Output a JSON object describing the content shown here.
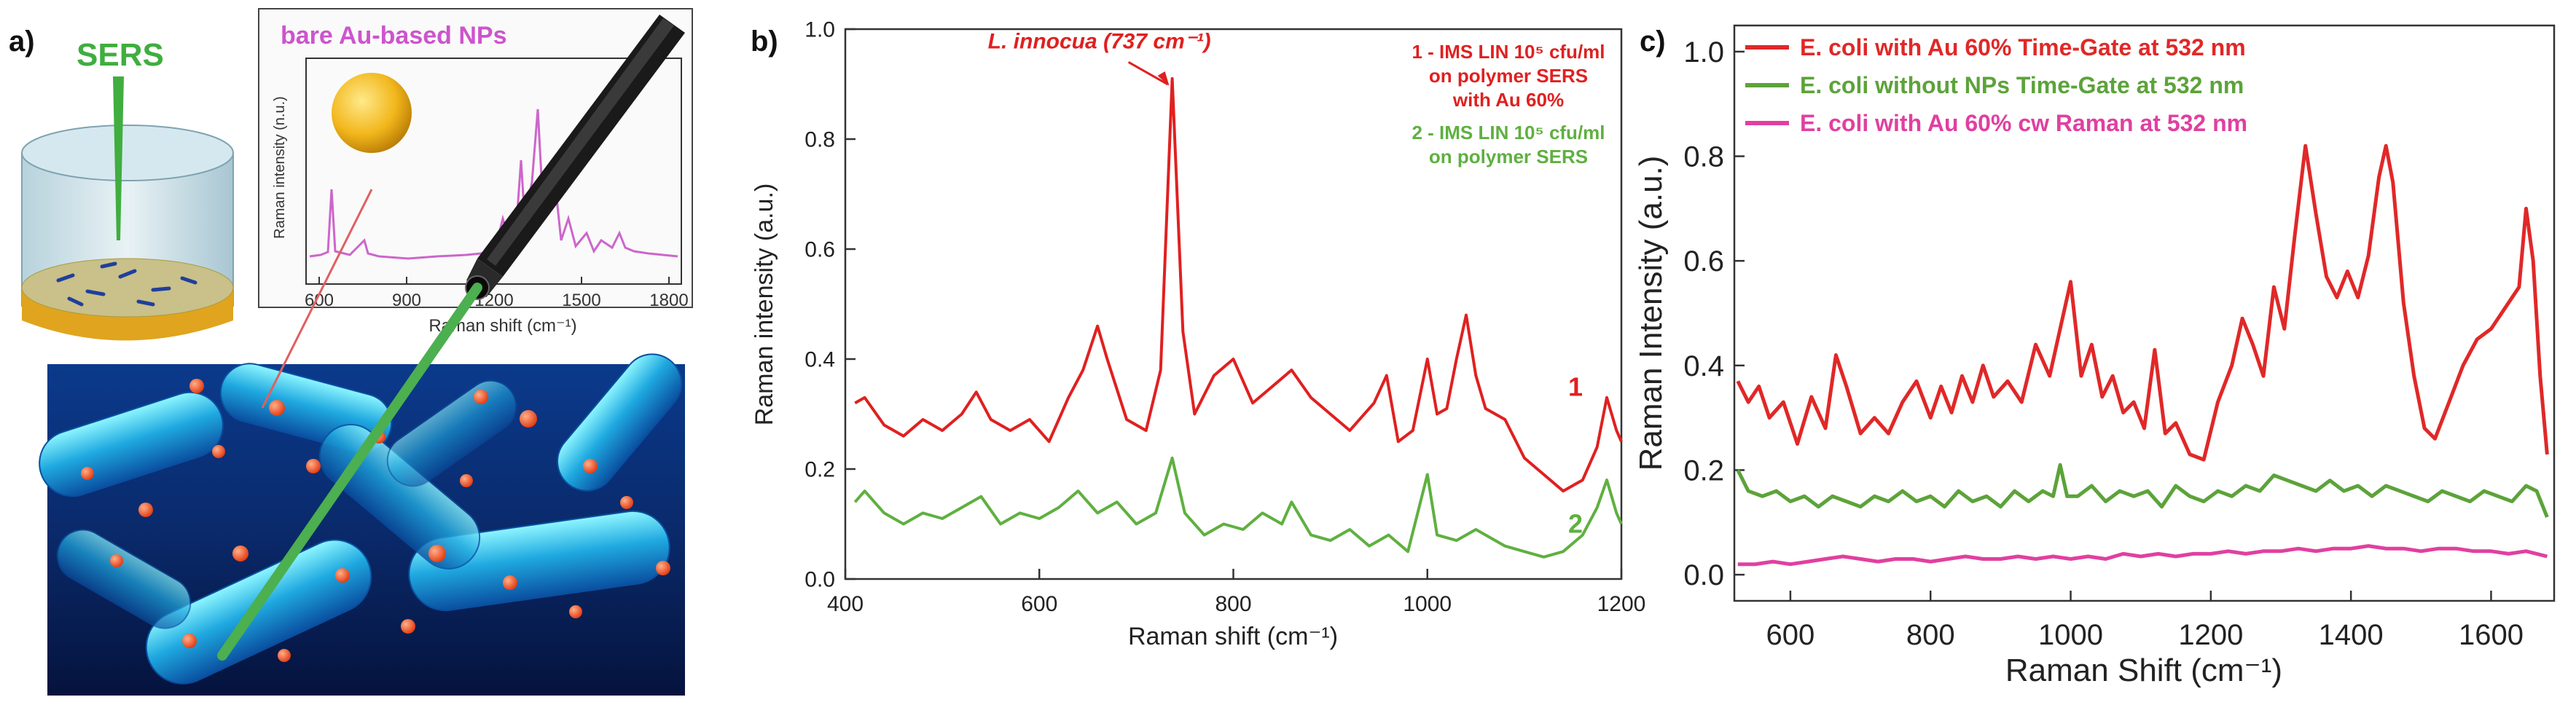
{
  "panel_labels": {
    "a": "a)",
    "b": "b)",
    "c": "c)"
  },
  "panel_a": {
    "sers_label": "SERS",
    "inset_title": "bare Au-based NPs",
    "inset_ylabel": "Raman intensity (n.u.)",
    "inset_xlabel": "Raman shift (cm⁻¹)",
    "inset_xticks": [
      "600",
      "900",
      "1200",
      "1500",
      "1800"
    ],
    "colors": {
      "inset_line": "#cc66cc",
      "title": "#cc55cc",
      "sers": "#3fae3f",
      "particle": "#ff5a2a",
      "laser": "#4caf50",
      "bacteria_bg": "#0a2a6b"
    }
  },
  "chart_data": [
    {
      "panel": "b",
      "type": "line",
      "xlabel": "Raman shift (cm⁻¹)",
      "ylabel": "Raman intensity (a.u.)",
      "xlim": [
        400,
        1200
      ],
      "ylim": [
        0.0,
        1.0
      ],
      "xticks": [
        "400",
        "600",
        "800",
        "1000",
        "1200"
      ],
      "yticks": [
        "0.0",
        "0.2",
        "0.4",
        "0.6",
        "0.8",
        "1.0"
      ],
      "annotation": {
        "text": "L. innocua (737 cm⁻¹)",
        "x": 737,
        "y": 0.91
      },
      "legend": [
        {
          "lines": [
            "1 - IMS LIN 10⁵ cfu/ml",
            "on polymer SERS",
            "with Au 60%"
          ],
          "color": "#e02020"
        },
        {
          "lines": [
            "2 - IMS LIN 10⁵ cfu/ml",
            "on polymer SERS"
          ],
          "color": "#5fb040"
        }
      ],
      "series": [
        {
          "name": "1",
          "label": "1",
          "color": "#e02020",
          "x": [
            410,
            420,
            440,
            460,
            480,
            500,
            520,
            535,
            550,
            570,
            590,
            610,
            630,
            645,
            660,
            670,
            690,
            710,
            725,
            737,
            748,
            760,
            780,
            800,
            820,
            840,
            860,
            880,
            900,
            920,
            945,
            958,
            970,
            985,
            1000,
            1010,
            1020,
            1030,
            1040,
            1050,
            1060,
            1080,
            1100,
            1120,
            1140,
            1160,
            1175,
            1185,
            1195,
            1200
          ],
          "y": [
            0.32,
            0.33,
            0.28,
            0.26,
            0.29,
            0.27,
            0.3,
            0.34,
            0.29,
            0.27,
            0.29,
            0.25,
            0.33,
            0.38,
            0.46,
            0.4,
            0.29,
            0.27,
            0.38,
            0.91,
            0.45,
            0.3,
            0.37,
            0.4,
            0.32,
            0.35,
            0.38,
            0.33,
            0.3,
            0.27,
            0.32,
            0.37,
            0.25,
            0.27,
            0.4,
            0.3,
            0.31,
            0.4,
            0.48,
            0.37,
            0.31,
            0.29,
            0.22,
            0.19,
            0.16,
            0.18,
            0.24,
            0.33,
            0.27,
            0.25
          ]
        },
        {
          "name": "2",
          "label": "2",
          "color": "#5fb040",
          "x": [
            410,
            420,
            440,
            460,
            480,
            500,
            520,
            540,
            560,
            580,
            600,
            620,
            640,
            660,
            680,
            700,
            720,
            737,
            750,
            770,
            790,
            810,
            830,
            850,
            860,
            880,
            900,
            920,
            940,
            960,
            980,
            1000,
            1010,
            1030,
            1050,
            1080,
            1100,
            1120,
            1140,
            1160,
            1175,
            1185,
            1195,
            1200
          ],
          "y": [
            0.14,
            0.16,
            0.12,
            0.1,
            0.12,
            0.11,
            0.13,
            0.15,
            0.1,
            0.12,
            0.11,
            0.13,
            0.16,
            0.12,
            0.14,
            0.1,
            0.12,
            0.22,
            0.12,
            0.08,
            0.1,
            0.09,
            0.12,
            0.1,
            0.14,
            0.08,
            0.07,
            0.09,
            0.06,
            0.08,
            0.05,
            0.19,
            0.08,
            0.07,
            0.09,
            0.06,
            0.05,
            0.04,
            0.05,
            0.08,
            0.13,
            0.18,
            0.12,
            0.1
          ]
        }
      ]
    },
    {
      "panel": "c",
      "type": "line",
      "xlabel": "Raman Shift (cm⁻¹)",
      "ylabel": "Raman Intensity (a.u.)",
      "xlim": [
        520,
        1690
      ],
      "ylim": [
        -0.05,
        1.05
      ],
      "xticks": [
        "600",
        "800",
        "1000",
        "1200",
        "1400",
        "1600"
      ],
      "yticks": [
        "0.0",
        "0.2",
        "0.4",
        "0.6",
        "0.8",
        "1.0"
      ],
      "series": [
        {
          "name": "E. coli with Au 60% Time-Gate at 532 nm",
          "color": "#e02828",
          "x": [
            525,
            540,
            555,
            570,
            590,
            610,
            630,
            650,
            665,
            680,
            700,
            720,
            740,
            760,
            780,
            800,
            815,
            830,
            845,
            860,
            875,
            890,
            910,
            930,
            950,
            970,
            985,
            1000,
            1015,
            1030,
            1045,
            1060,
            1075,
            1090,
            1105,
            1120,
            1135,
            1150,
            1170,
            1190,
            1210,
            1230,
            1245,
            1260,
            1275,
            1290,
            1305,
            1320,
            1335,
            1350,
            1365,
            1380,
            1395,
            1410,
            1425,
            1440,
            1450,
            1460,
            1475,
            1490,
            1505,
            1520,
            1540,
            1560,
            1580,
            1600,
            1620,
            1640,
            1650,
            1660,
            1670,
            1680
          ],
          "y": [
            0.37,
            0.33,
            0.36,
            0.3,
            0.33,
            0.25,
            0.34,
            0.28,
            0.42,
            0.36,
            0.27,
            0.3,
            0.27,
            0.33,
            0.37,
            0.3,
            0.36,
            0.31,
            0.38,
            0.33,
            0.4,
            0.34,
            0.37,
            0.33,
            0.44,
            0.38,
            0.47,
            0.56,
            0.38,
            0.44,
            0.34,
            0.38,
            0.31,
            0.33,
            0.28,
            0.43,
            0.27,
            0.29,
            0.23,
            0.22,
            0.33,
            0.4,
            0.49,
            0.44,
            0.38,
            0.55,
            0.47,
            0.65,
            0.82,
            0.69,
            0.57,
            0.53,
            0.58,
            0.53,
            0.61,
            0.76,
            0.82,
            0.75,
            0.52,
            0.38,
            0.28,
            0.26,
            0.33,
            0.4,
            0.45,
            0.47,
            0.51,
            0.55,
            0.7,
            0.6,
            0.38,
            0.23
          ]
        },
        {
          "name": "E. coli without NPs Time-Gate at 532 nm",
          "color": "#5ca33a",
          "x": [
            525,
            540,
            560,
            580,
            600,
            620,
            640,
            660,
            680,
            700,
            720,
            740,
            760,
            780,
            800,
            820,
            840,
            860,
            880,
            900,
            920,
            940,
            960,
            975,
            985,
            995,
            1010,
            1030,
            1050,
            1070,
            1090,
            1110,
            1130,
            1150,
            1170,
            1190,
            1210,
            1230,
            1250,
            1270,
            1290,
            1310,
            1330,
            1350,
            1370,
            1390,
            1410,
            1430,
            1450,
            1470,
            1490,
            1510,
            1530,
            1550,
            1570,
            1590,
            1610,
            1630,
            1650,
            1665,
            1680
          ],
          "y": [
            0.2,
            0.16,
            0.15,
            0.16,
            0.14,
            0.15,
            0.13,
            0.15,
            0.14,
            0.13,
            0.15,
            0.14,
            0.16,
            0.14,
            0.15,
            0.13,
            0.16,
            0.14,
            0.15,
            0.13,
            0.16,
            0.14,
            0.16,
            0.15,
            0.21,
            0.15,
            0.15,
            0.17,
            0.14,
            0.16,
            0.15,
            0.16,
            0.13,
            0.17,
            0.15,
            0.14,
            0.16,
            0.15,
            0.17,
            0.16,
            0.19,
            0.18,
            0.17,
            0.16,
            0.18,
            0.16,
            0.17,
            0.15,
            0.17,
            0.16,
            0.15,
            0.14,
            0.16,
            0.15,
            0.14,
            0.16,
            0.15,
            0.14,
            0.17,
            0.16,
            0.11
          ]
        },
        {
          "name": "E. coli with Au 60% cw Raman at 532 nm",
          "color": "#e040a0",
          "x": [
            525,
            550,
            575,
            600,
            625,
            650,
            675,
            700,
            725,
            750,
            775,
            800,
            825,
            850,
            875,
            900,
            925,
            950,
            975,
            1000,
            1025,
            1050,
            1075,
            1100,
            1125,
            1150,
            1175,
            1200,
            1225,
            1250,
            1275,
            1300,
            1325,
            1350,
            1375,
            1400,
            1425,
            1450,
            1475,
            1500,
            1525,
            1550,
            1575,
            1600,
            1625,
            1650,
            1680
          ],
          "y": [
            0.02,
            0.02,
            0.025,
            0.02,
            0.025,
            0.03,
            0.035,
            0.03,
            0.025,
            0.03,
            0.03,
            0.025,
            0.03,
            0.035,
            0.03,
            0.03,
            0.035,
            0.03,
            0.035,
            0.03,
            0.035,
            0.03,
            0.04,
            0.035,
            0.04,
            0.035,
            0.04,
            0.04,
            0.045,
            0.04,
            0.045,
            0.045,
            0.05,
            0.045,
            0.05,
            0.05,
            0.055,
            0.05,
            0.05,
            0.045,
            0.05,
            0.05,
            0.045,
            0.045,
            0.04,
            0.045,
            0.035
          ]
        }
      ]
    }
  ]
}
